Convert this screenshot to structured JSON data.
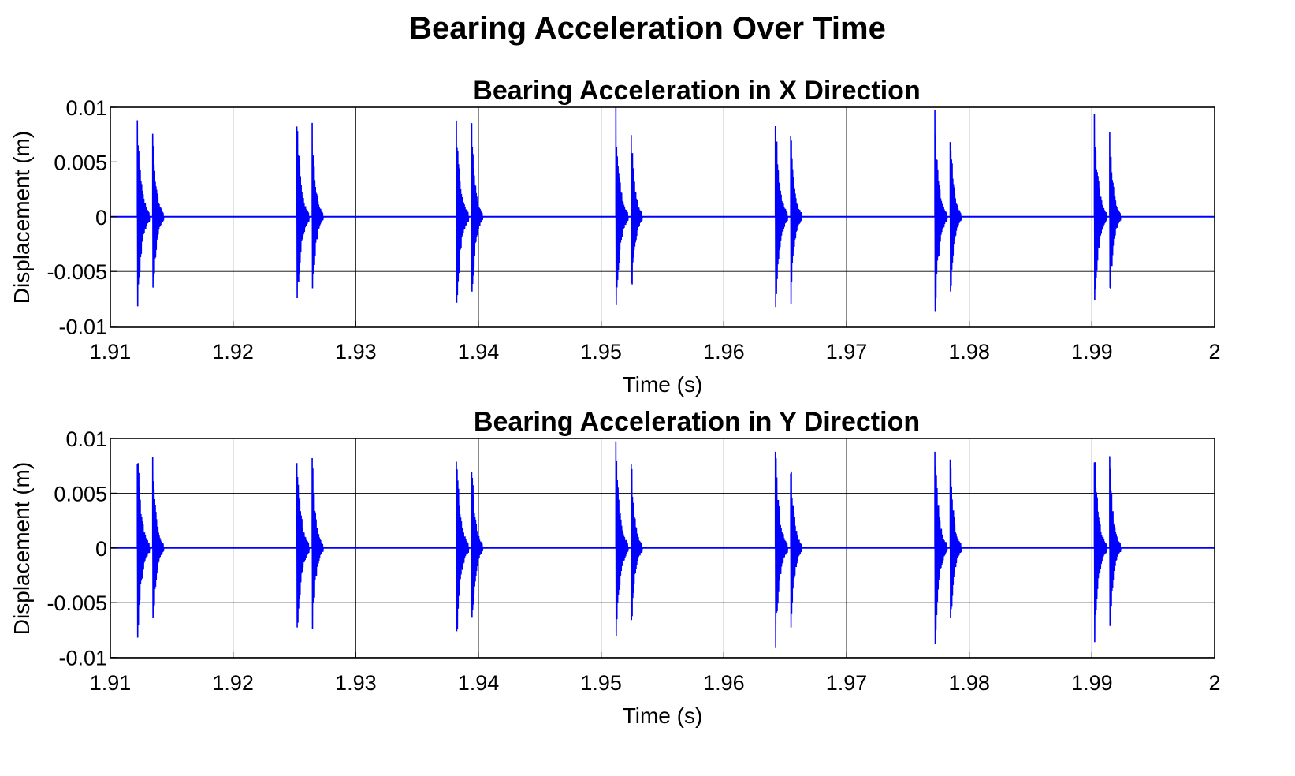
{
  "figure_title": "Bearing Acceleration Over Time",
  "colors": {
    "signal": "#0000ff",
    "grid": "#000000",
    "axes": "#000000"
  },
  "chart_data": [
    {
      "type": "line",
      "title": "Bearing Acceleration in X Direction",
      "xlabel": "Time (s)",
      "ylabel": "Displacement (m)",
      "xlim": [
        1.91,
        2.0
      ],
      "ylim": [
        -0.0101,
        0.01
      ],
      "xticks": [
        1.91,
        1.92,
        1.93,
        1.94,
        1.95,
        1.96,
        1.97,
        1.98,
        1.99,
        2.0
      ],
      "xtick_labels": [
        "1.91",
        "1.92",
        "1.93",
        "1.94",
        "1.95",
        "1.96",
        "1.97",
        "1.98",
        "1.99",
        "2"
      ],
      "yticks": [
        0.01,
        0.005,
        0,
        -0.005,
        -0.01
      ],
      "ytick_labels": [
        "0.01",
        "0.005",
        "0",
        "-0.005",
        "-0.01"
      ],
      "grid": true,
      "series": [
        {
          "impact_times": [
            1.9122,
            1.9252,
            1.9382,
            1.9512,
            1.9642,
            1.9772,
            1.9902
          ],
          "primary_burst": {
            "peak": 0.0101,
            "trough": -0.0101,
            "duration": 0.001
          },
          "secondary_burst": {
            "offset": 0.00125,
            "peak": 0.0088,
            "trough": -0.0088,
            "duration": 0.0009
          },
          "baseline": 0
        }
      ]
    },
    {
      "type": "line",
      "title": "Bearing Acceleration in Y Direction",
      "xlabel": "Time (s)",
      "ylabel": "Displacement (m)",
      "xlim": [
        1.91,
        2.0
      ],
      "ylim": [
        -0.0101,
        0.01
      ],
      "xticks": [
        1.91,
        1.92,
        1.93,
        1.94,
        1.95,
        1.96,
        1.97,
        1.98,
        1.99,
        2.0
      ],
      "xtick_labels": [
        "1.91",
        "1.92",
        "1.93",
        "1.94",
        "1.95",
        "1.96",
        "1.97",
        "1.98",
        "1.99",
        "2"
      ],
      "yticks": [
        0.01,
        0.005,
        0,
        -0.005,
        -0.01
      ],
      "ytick_labels": [
        "0.01",
        "0.005",
        "0",
        "-0.005",
        "-0.01"
      ],
      "grid": true,
      "series": [
        {
          "impact_times": [
            1.9122,
            1.9252,
            1.9382,
            1.9512,
            1.9642,
            1.9772,
            1.9902
          ],
          "primary_burst": {
            "peak": 0.0101,
            "trough": -0.0101,
            "duration": 0.001
          },
          "secondary_burst": {
            "offset": 0.00125,
            "peak": 0.0088,
            "trough": -0.0088,
            "duration": 0.0009
          },
          "baseline": 0
        }
      ]
    }
  ]
}
